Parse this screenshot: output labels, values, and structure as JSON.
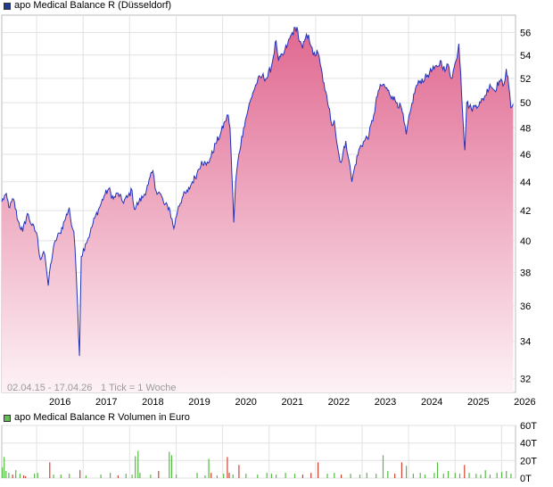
{
  "price_legend": {
    "label": "apo Medical Balance R (Düsseldorf)",
    "color": "#1f3a93"
  },
  "volume_legend": {
    "label": "apo Medical Balance R Volumen in Euro",
    "color": "#66bb55"
  },
  "footer": {
    "range_text": "02.04.15 - 17.04.26",
    "tick_text": "1 Tick = 1 Woche"
  },
  "chart_data": [
    {
      "type": "area",
      "title": "",
      "series": [
        {
          "name": "apo Medical Balance R (Düsseldorf)",
          "line_color": "#2233bb",
          "fill_top_color": "#e06890",
          "fill_bottom_color": "#fdf2f6"
        }
      ],
      "y_ticks": [
        32,
        34,
        36,
        38,
        40,
        42,
        44,
        46,
        48,
        50,
        52,
        54,
        56
      ],
      "y_scale": "log",
      "ylim": [
        31.3,
        57.6
      ],
      "x_ticks": [
        "2016",
        "2017",
        "2018",
        "2019",
        "2020",
        "2021",
        "2022",
        "2023",
        "2024",
        "2025",
        "2026"
      ],
      "xlim": [
        2015.25,
        2026.3
      ],
      "grid": true,
      "points": [
        [
          2015.25,
          42.6
        ],
        [
          2015.33,
          43.1
        ],
        [
          2015.42,
          42.2
        ],
        [
          2015.5,
          42.8
        ],
        [
          2015.6,
          41.3
        ],
        [
          2015.7,
          40.6
        ],
        [
          2015.8,
          41.8
        ],
        [
          2015.9,
          41.0
        ],
        [
          2016.0,
          40.5
        ],
        [
          2016.08,
          38.8
        ],
        [
          2016.15,
          39.3
        ],
        [
          2016.2,
          38.5
        ],
        [
          2016.25,
          37.2
        ],
        [
          2016.3,
          38.5
        ],
        [
          2016.4,
          40.0
        ],
        [
          2016.5,
          40.5
        ],
        [
          2016.6,
          41.3
        ],
        [
          2016.7,
          42.2
        ],
        [
          2016.75,
          41.0
        ],
        [
          2016.8,
          40.6
        ],
        [
          2016.85,
          38.0
        ],
        [
          2016.88,
          36.0
        ],
        [
          2016.92,
          33.2
        ],
        [
          2016.96,
          39.0
        ],
        [
          2017.05,
          39.8
        ],
        [
          2017.15,
          40.5
        ],
        [
          2017.25,
          41.5
        ],
        [
          2017.35,
          42.2
        ],
        [
          2017.45,
          43.0
        ],
        [
          2017.55,
          43.5
        ],
        [
          2017.65,
          42.8
        ],
        [
          2017.75,
          43.2
        ],
        [
          2017.85,
          42.6
        ],
        [
          2017.95,
          42.9
        ],
        [
          2018.05,
          43.4
        ],
        [
          2018.1,
          42.1
        ],
        [
          2018.2,
          42.6
        ],
        [
          2018.3,
          43.0
        ],
        [
          2018.4,
          43.8
        ],
        [
          2018.5,
          44.8
        ],
        [
          2018.55,
          43.5
        ],
        [
          2018.65,
          43.2
        ],
        [
          2018.75,
          42.4
        ],
        [
          2018.85,
          42.2
        ],
        [
          2018.95,
          40.8
        ],
        [
          2019.05,
          42.3
        ],
        [
          2019.15,
          43.0
        ],
        [
          2019.25,
          43.3
        ],
        [
          2019.35,
          44.0
        ],
        [
          2019.45,
          44.6
        ],
        [
          2019.55,
          45.5
        ],
        [
          2019.65,
          45.2
        ],
        [
          2019.75,
          45.8
        ],
        [
          2019.85,
          46.8
        ],
        [
          2019.95,
          47.5
        ],
        [
          2020.05,
          48.5
        ],
        [
          2020.12,
          49.0
        ],
        [
          2020.16,
          48.0
        ],
        [
          2020.2,
          44.5
        ],
        [
          2020.24,
          41.2
        ],
        [
          2020.28,
          44.0
        ],
        [
          2020.35,
          46.0
        ],
        [
          2020.45,
          48.0
        ],
        [
          2020.55,
          49.5
        ],
        [
          2020.65,
          50.8
        ],
        [
          2020.75,
          51.8
        ],
        [
          2020.85,
          52.2
        ],
        [
          2020.95,
          52.0
        ],
        [
          2021.05,
          53.0
        ],
        [
          2021.15,
          55.3
        ],
        [
          2021.2,
          53.5
        ],
        [
          2021.3,
          54.0
        ],
        [
          2021.4,
          55.0
        ],
        [
          2021.5,
          56.0
        ],
        [
          2021.6,
          56.5
        ],
        [
          2021.65,
          55.2
        ],
        [
          2021.72,
          54.6
        ],
        [
          2021.78,
          55.5
        ],
        [
          2021.85,
          55.8
        ],
        [
          2021.9,
          54.8
        ],
        [
          2021.95,
          54.0
        ],
        [
          2022.05,
          54.2
        ],
        [
          2022.1,
          53.2
        ],
        [
          2022.2,
          51.0
        ],
        [
          2022.3,
          49.5
        ],
        [
          2022.35,
          48.2
        ],
        [
          2022.4,
          48.6
        ],
        [
          2022.45,
          47.0
        ],
        [
          2022.5,
          46.0
        ],
        [
          2022.55,
          45.4
        ],
        [
          2022.65,
          47.0
        ],
        [
          2022.72,
          45.5
        ],
        [
          2022.78,
          44.0
        ],
        [
          2022.85,
          45.2
        ],
        [
          2022.95,
          46.5
        ],
        [
          2023.05,
          47.0
        ],
        [
          2023.15,
          47.5
        ],
        [
          2023.25,
          49.0
        ],
        [
          2023.35,
          51.0
        ],
        [
          2023.45,
          51.5
        ],
        [
          2023.55,
          51.0
        ],
        [
          2023.65,
          50.5
        ],
        [
          2023.75,
          50.0
        ],
        [
          2023.85,
          49.5
        ],
        [
          2023.9,
          48.5
        ],
        [
          2023.95,
          47.5
        ],
        [
          2024.05,
          49.5
        ],
        [
          2024.15,
          51.2
        ],
        [
          2024.25,
          51.8
        ],
        [
          2024.35,
          52.0
        ],
        [
          2024.45,
          52.5
        ],
        [
          2024.55,
          52.8
        ],
        [
          2024.62,
          53.0
        ],
        [
          2024.7,
          53.5
        ],
        [
          2024.78,
          52.6
        ],
        [
          2024.85,
          53.2
        ],
        [
          2024.92,
          52.0
        ],
        [
          2025.02,
          53.5
        ],
        [
          2025.08,
          55.0
        ],
        [
          2025.12,
          52.5
        ],
        [
          2025.18,
          48.0
        ],
        [
          2025.21,
          46.3
        ],
        [
          2025.25,
          50.0
        ],
        [
          2025.35,
          49.5
        ],
        [
          2025.45,
          49.8
        ],
        [
          2025.55,
          50.0
        ],
        [
          2025.65,
          50.6
        ],
        [
          2025.75,
          51.5
        ],
        [
          2025.85,
          51.0
        ],
        [
          2025.95,
          51.8
        ],
        [
          2026.05,
          51.5
        ],
        [
          2026.1,
          52.8
        ],
        [
          2026.15,
          51.5
        ],
        [
          2026.2,
          49.6
        ],
        [
          2026.25,
          49.9
        ]
      ]
    },
    {
      "type": "bar",
      "title": "",
      "series": [
        {
          "name": "apo Medical Balance R Volumen in Euro",
          "up_color": "#55bb44",
          "down_color": "#cc4433"
        }
      ],
      "y_ticks": [
        "0T",
        "20T",
        "40T",
        "60T"
      ],
      "ylim": [
        0,
        60
      ],
      "xlim": [
        2015.25,
        2026.3
      ],
      "grid": true,
      "bars": [
        [
          2015.26,
          12,
          "up"
        ],
        [
          2015.3,
          24,
          "up"
        ],
        [
          2015.34,
          8,
          "up"
        ],
        [
          2015.4,
          6,
          "up"
        ],
        [
          2015.48,
          4,
          "down"
        ],
        [
          2015.55,
          9,
          "up"
        ],
        [
          2015.64,
          5,
          "up"
        ],
        [
          2015.72,
          3,
          "down"
        ],
        [
          2015.76,
          2,
          "down"
        ],
        [
          2015.95,
          5,
          "up"
        ],
        [
          2016.02,
          6,
          "up"
        ],
        [
          2016.28,
          18,
          "down"
        ],
        [
          2016.36,
          4,
          "up"
        ],
        [
          2016.52,
          4,
          "up"
        ],
        [
          2016.7,
          5,
          "up"
        ],
        [
          2016.93,
          9,
          "down"
        ],
        [
          2017.06,
          3,
          "up"
        ],
        [
          2017.38,
          4,
          "up"
        ],
        [
          2017.58,
          6,
          "up"
        ],
        [
          2017.75,
          3,
          "down"
        ],
        [
          2017.92,
          5,
          "up"
        ],
        [
          2018.05,
          4,
          "up"
        ],
        [
          2018.12,
          25,
          "up"
        ],
        [
          2018.18,
          31,
          "up"
        ],
        [
          2018.22,
          6,
          "up"
        ],
        [
          2018.45,
          4,
          "up"
        ],
        [
          2018.62,
          8,
          "down"
        ],
        [
          2018.85,
          30,
          "up"
        ],
        [
          2018.9,
          26,
          "up"
        ],
        [
          2019.0,
          4,
          "up"
        ],
        [
          2019.45,
          6,
          "up"
        ],
        [
          2019.62,
          3,
          "up"
        ],
        [
          2019.7,
          22,
          "up"
        ],
        [
          2019.75,
          6,
          "down"
        ],
        [
          2019.88,
          3,
          "up"
        ],
        [
          2020.02,
          5,
          "up"
        ],
        [
          2020.1,
          24,
          "down"
        ],
        [
          2020.14,
          6,
          "down"
        ],
        [
          2020.22,
          4,
          "up"
        ],
        [
          2020.35,
          15,
          "down"
        ],
        [
          2020.5,
          5,
          "up"
        ],
        [
          2020.75,
          4,
          "up"
        ],
        [
          2020.95,
          6,
          "up"
        ],
        [
          2021.05,
          5,
          "up"
        ],
        [
          2021.15,
          4,
          "up"
        ],
        [
          2021.35,
          6,
          "up"
        ],
        [
          2021.55,
          5,
          "up"
        ],
        [
          2021.72,
          4,
          "down"
        ],
        [
          2021.9,
          6,
          "down"
        ],
        [
          2022.05,
          18,
          "down"
        ],
        [
          2022.25,
          5,
          "up"
        ],
        [
          2022.4,
          6,
          "up"
        ],
        [
          2022.55,
          4,
          "down"
        ],
        [
          2022.75,
          5,
          "up"
        ],
        [
          2022.95,
          4,
          "up"
        ],
        [
          2023.1,
          6,
          "up"
        ],
        [
          2023.3,
          5,
          "up"
        ],
        [
          2023.45,
          26,
          "up"
        ],
        [
          2023.55,
          8,
          "up"
        ],
        [
          2023.7,
          5,
          "down"
        ],
        [
          2023.85,
          18,
          "down"
        ],
        [
          2023.95,
          14,
          "up"
        ],
        [
          2024.1,
          5,
          "up"
        ],
        [
          2024.25,
          6,
          "up"
        ],
        [
          2024.35,
          4,
          "up"
        ],
        [
          2024.55,
          6,
          "up"
        ],
        [
          2024.62,
          18,
          "up"
        ],
        [
          2024.75,
          5,
          "up"
        ],
        [
          2024.85,
          8,
          "up"
        ],
        [
          2025.0,
          6,
          "up"
        ],
        [
          2025.1,
          5,
          "up"
        ],
        [
          2025.2,
          15,
          "down"
        ],
        [
          2025.3,
          6,
          "up"
        ],
        [
          2025.45,
          5,
          "up"
        ],
        [
          2025.55,
          4,
          "up"
        ],
        [
          2025.65,
          9,
          "up"
        ],
        [
          2025.75,
          4,
          "up"
        ],
        [
          2025.9,
          6,
          "up"
        ],
        [
          2026.0,
          7,
          "up"
        ],
        [
          2026.1,
          8,
          "up"
        ],
        [
          2026.2,
          5,
          "up"
        ]
      ]
    }
  ]
}
